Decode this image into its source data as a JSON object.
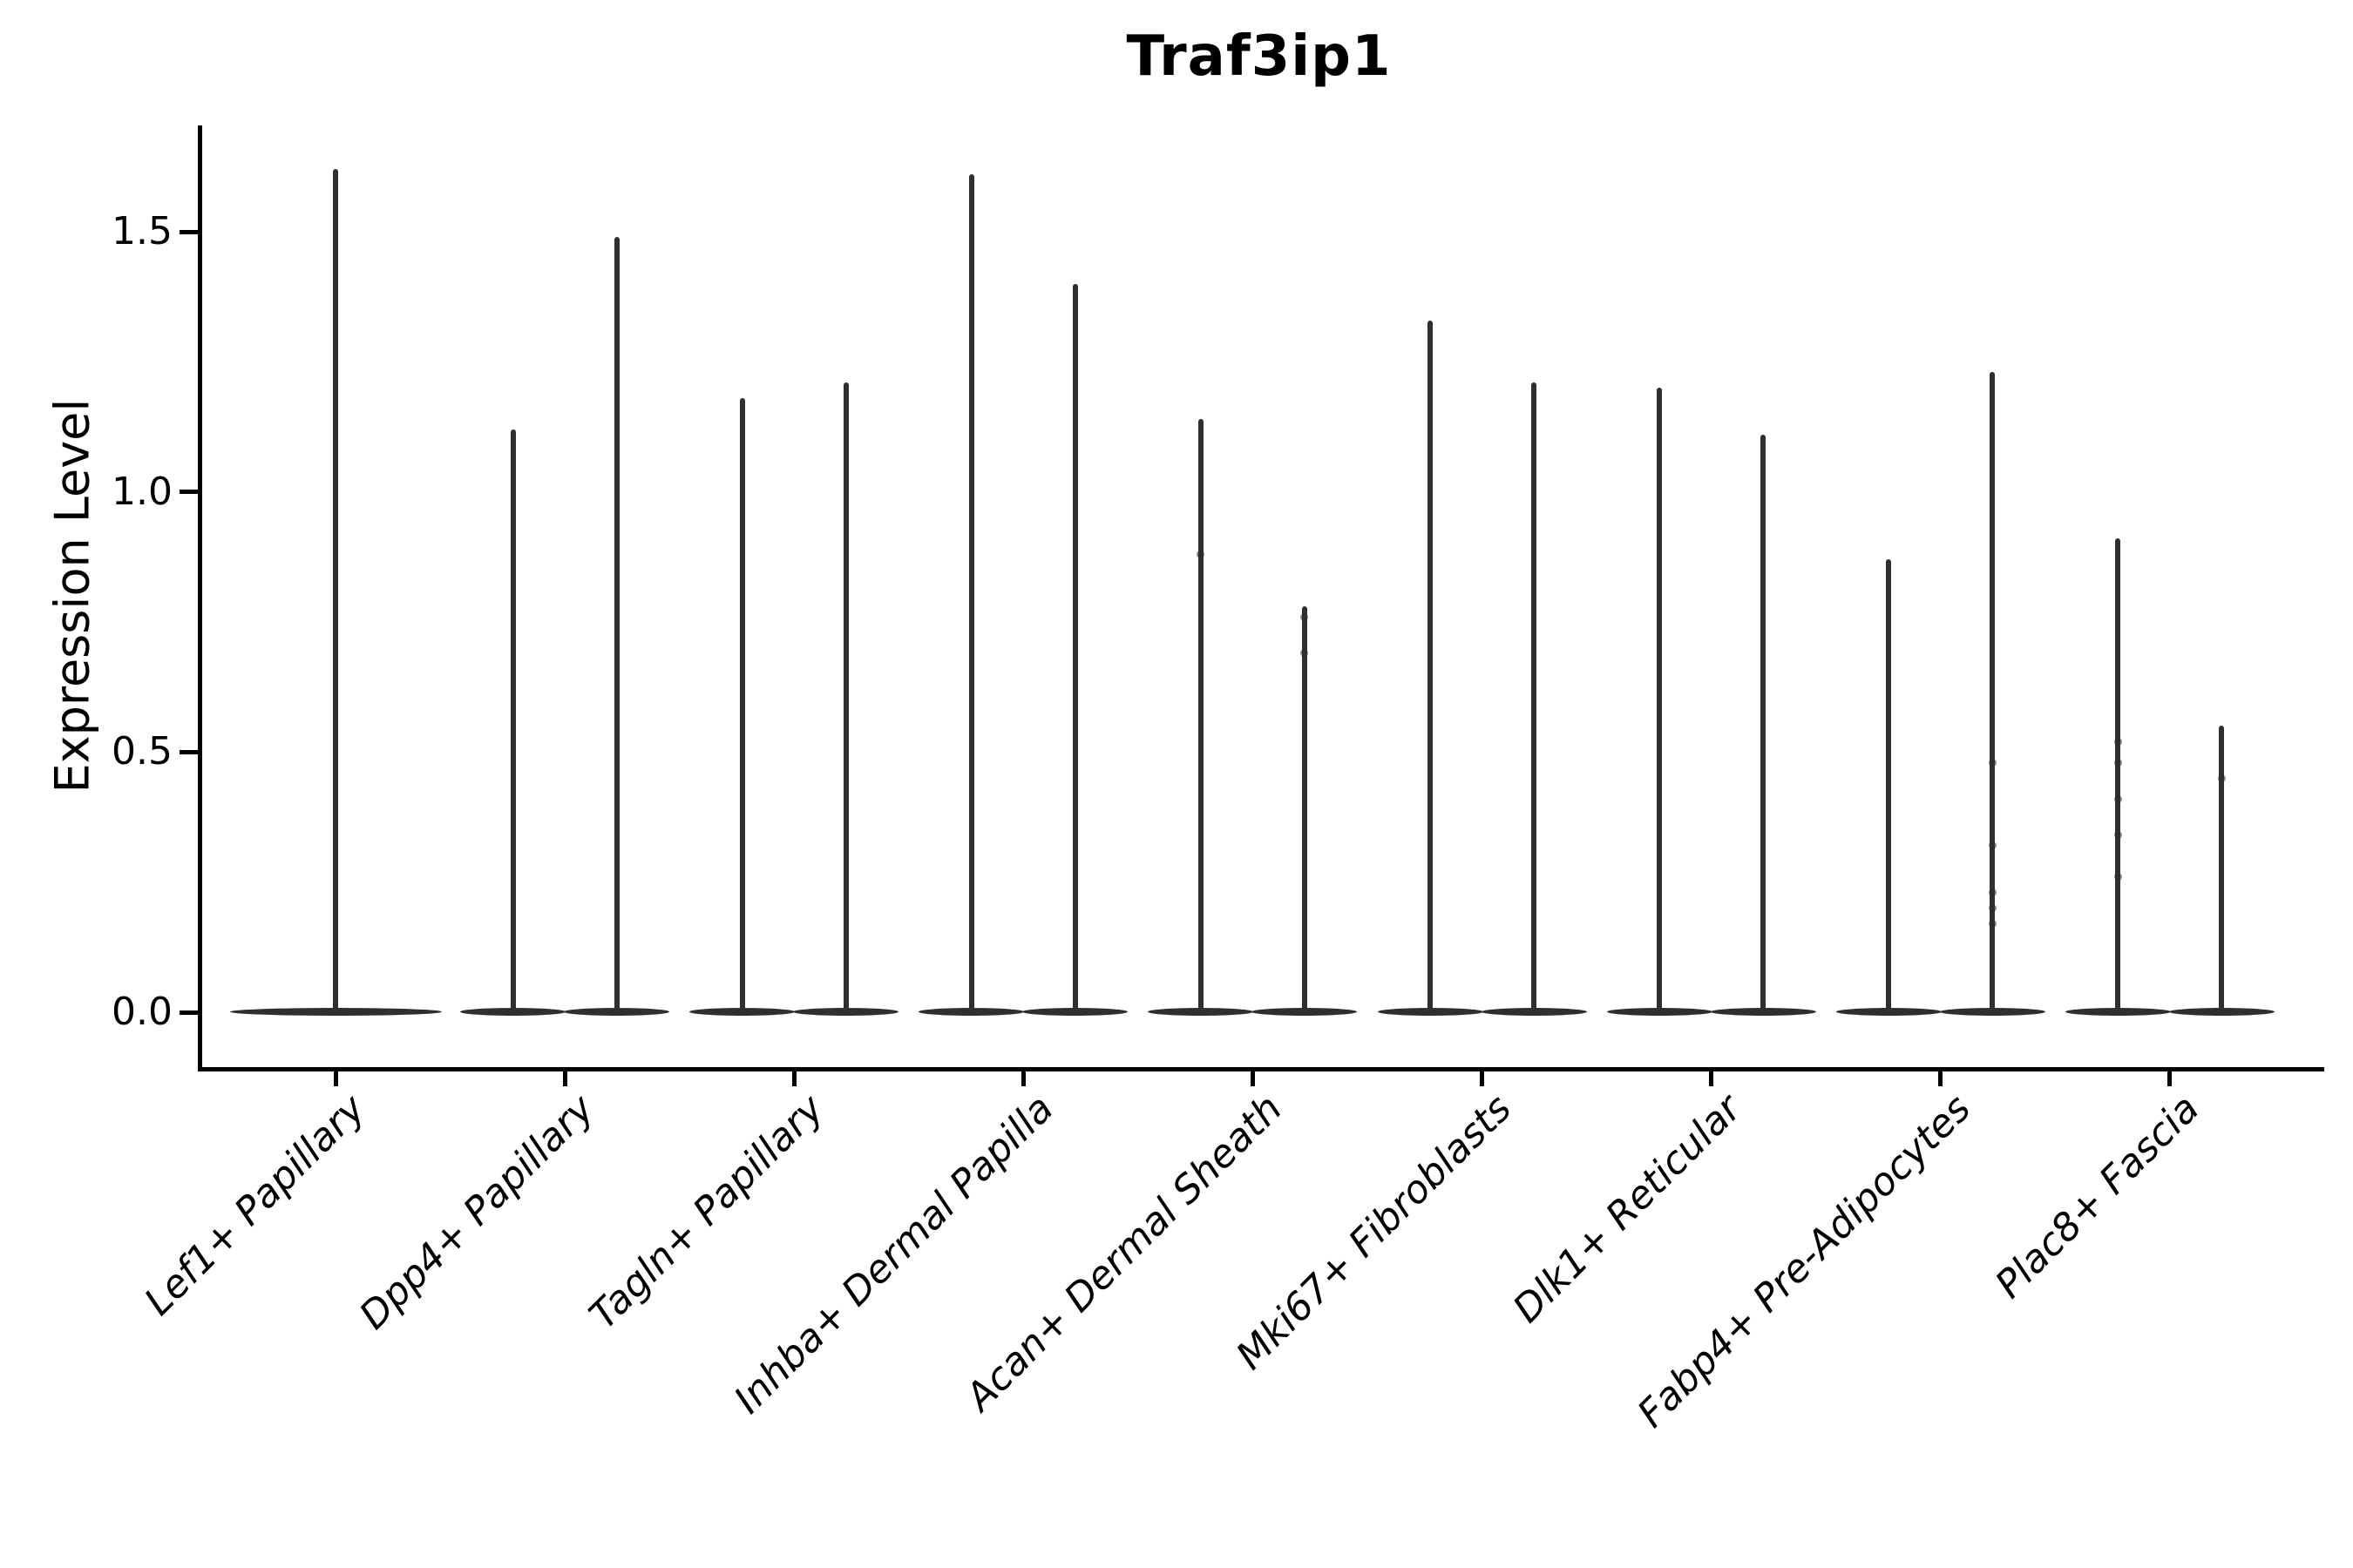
{
  "chart_data": {
    "type": "violin",
    "title": "Traf3ip1",
    "ylabel": "Expression Level",
    "xlabel": "",
    "yticks": [
      "0.0",
      "0.5",
      "1.0",
      "1.5"
    ],
    "ytick_values": [
      0.0,
      0.5,
      1.0,
      1.5
    ],
    "ylim": [
      -0.08,
      1.7
    ],
    "grid": false,
    "legend": "none",
    "accent_color": "#2f2f2f",
    "axis_color": "#000000",
    "categories": [
      "Lef1+ Papillary",
      "Dpp4+ Papillary",
      "Tagln+ Papillary",
      "Inhba+ Dermal Papilla",
      "Acan+ Dermal Sheath",
      "Mki67+ Fibroblasts",
      "Dlk1+ Reticular",
      "Fabp4+ Pre-Adipocytes",
      "Plac8+ Fascia"
    ],
    "groups": [
      {
        "category": "Lef1+ Papillary",
        "violins": [
          {
            "pos": "center",
            "max": 1.62,
            "points": []
          }
        ]
      },
      {
        "category": "Dpp4+ Papillary",
        "violins": [
          {
            "pos": "left",
            "max": 1.12,
            "points": []
          },
          {
            "pos": "right",
            "max": 1.49,
            "points": []
          }
        ]
      },
      {
        "category": "Tagln+ Papillary",
        "violins": [
          {
            "pos": "left",
            "max": 1.18,
            "points": []
          },
          {
            "pos": "right",
            "max": 1.21,
            "points": []
          }
        ]
      },
      {
        "category": "Inhba+ Dermal Papilla",
        "violins": [
          {
            "pos": "left",
            "max": 1.61,
            "points": []
          },
          {
            "pos": "right",
            "max": 1.4,
            "points": []
          }
        ]
      },
      {
        "category": "Acan+ Dermal Sheath",
        "violins": [
          {
            "pos": "left",
            "max": 1.14,
            "points": [
              0.88
            ]
          },
          {
            "pos": "right",
            "max": 0.78,
            "points": [
              0.76,
              0.69
            ]
          }
        ]
      },
      {
        "category": "Mki67+ Fibroblasts",
        "violins": [
          {
            "pos": "left",
            "max": 1.33,
            "points": []
          },
          {
            "pos": "right",
            "max": 1.21,
            "points": []
          }
        ]
      },
      {
        "category": "Dlk1+ Reticular",
        "violins": [
          {
            "pos": "left",
            "max": 1.2,
            "points": []
          },
          {
            "pos": "right",
            "max": 1.11,
            "points": []
          }
        ]
      },
      {
        "category": "Fabp4+ Pre-Adipocytes",
        "violins": [
          {
            "pos": "left",
            "max": 0.87,
            "points": []
          },
          {
            "pos": "right",
            "max": 1.23,
            "points": [
              0.48,
              0.32,
              0.23,
              0.2,
              0.17
            ]
          }
        ]
      },
      {
        "category": "Plac8+ Fascia",
        "violins": [
          {
            "pos": "left",
            "max": 0.91,
            "points": [
              0.52,
              0.48,
              0.41,
              0.34,
              0.26
            ]
          },
          {
            "pos": "right",
            "max": 0.55,
            "points": [
              0.45
            ]
          }
        ]
      }
    ]
  }
}
